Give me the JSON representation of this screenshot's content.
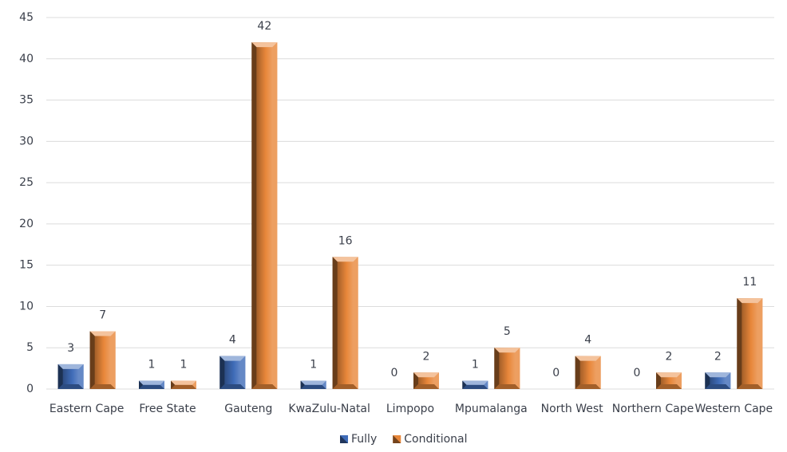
{
  "chart_data": {
    "type": "bar",
    "categories": [
      "Eastern Cape",
      "Free State",
      "Gauteng",
      "KwaZulu-Natal",
      "Limpopo",
      "Mpumalanga",
      "North West",
      "Northern Cape",
      "Western Cape"
    ],
    "series": [
      {
        "name": "Fully",
        "color": "#3f6cb8",
        "values": [
          3,
          1,
          4,
          1,
          0,
          1,
          0,
          0,
          2
        ]
      },
      {
        "name": "Conditional",
        "color": "#e8873a",
        "values": [
          7,
          1,
          42,
          16,
          2,
          5,
          4,
          2,
          11
        ]
      }
    ],
    "ylim": [
      0,
      45
    ],
    "yticks": [
      0,
      5,
      10,
      15,
      20,
      25,
      30,
      35,
      40,
      45
    ],
    "grid": true,
    "legend": "bottom"
  }
}
